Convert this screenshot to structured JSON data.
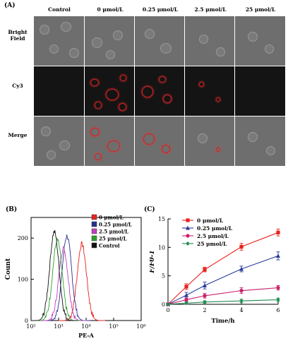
{
  "panelA": {
    "label": "(A)",
    "columns": [
      "Control",
      "0 μmol/L",
      "0.25 μmol/L",
      "2.5 μmol/L",
      "25 μmol/L"
    ],
    "rows": [
      {
        "line1": "Bright",
        "line2": "Field"
      },
      {
        "line1": "Cy3",
        "line2": ""
      },
      {
        "line1": "Merge",
        "line2": ""
      }
    ]
  },
  "panelB": {
    "label": "(B)",
    "chart_data": {
      "type": "line",
      "xlabel": "PE-A",
      "ylabel": "Count",
      "xscale": "log",
      "xlim_exp": [
        2,
        6
      ],
      "x_tick_labels": [
        "10²",
        "10³",
        "10⁴",
        "10⁵",
        "10⁶"
      ],
      "ylim": [
        0,
        250
      ],
      "y_ticks": [
        0,
        100,
        200
      ],
      "legend_position": "top-right",
      "series": [
        {
          "name": "0 μmol/L",
          "color": "#e8231e",
          "peak_x": 7000,
          "peak_count": 185
        },
        {
          "name": "0.25 μmol/L",
          "color": "#2b2f8f",
          "peak_x": 2000,
          "peak_count": 205
        },
        {
          "name": "2.5 μmol/L",
          "color": "#c040c0",
          "peak_x": 1500,
          "peak_count": 175
        },
        {
          "name": "25 μmol/L",
          "color": "#2ca02c",
          "peak_x": 900,
          "peak_count": 195
        },
        {
          "name": "Control",
          "color": "#111111",
          "peak_x": 700,
          "peak_count": 215
        }
      ]
    }
  },
  "panelC": {
    "label": "(C)",
    "chart_data": {
      "type": "line",
      "xlabel": "Time/h",
      "ylabel": "F/F0-1",
      "xlim": [
        0,
        6
      ],
      "ylim": [
        0,
        15
      ],
      "x_ticks": [
        0,
        2,
        4,
        6
      ],
      "y_ticks": [
        0,
        5,
        10,
        15
      ],
      "legend_position": "top-left",
      "x": [
        0,
        1,
        2,
        4,
        6
      ],
      "series": [
        {
          "name": "0 μmol/L",
          "color": "#e8231e",
          "marker": "square",
          "values": [
            0,
            3.1,
            6.1,
            10.1,
            12.6
          ],
          "err": [
            0.2,
            0.5,
            0.4,
            0.6,
            0.6
          ]
        },
        {
          "name": "0.25 μmol/L",
          "color": "#2b3a9c",
          "marker": "triangle",
          "values": [
            0,
            1.6,
            3.3,
            6.2,
            8.5
          ],
          "err": [
            0.2,
            0.5,
            0.6,
            0.5,
            0.7
          ]
        },
        {
          "name": "2.5 μmol/L",
          "color": "#c8206a",
          "marker": "circle",
          "values": [
            0,
            0.8,
            1.5,
            2.4,
            2.9
          ],
          "err": [
            0.1,
            0.3,
            0.4,
            0.5,
            0.4
          ]
        },
        {
          "name": "25 μmol/L",
          "color": "#1f8a50",
          "marker": "diamond",
          "values": [
            0,
            0.2,
            0.4,
            0.6,
            0.8
          ],
          "err": [
            0.1,
            0.2,
            0.2,
            0.3,
            0.3
          ]
        }
      ]
    }
  }
}
